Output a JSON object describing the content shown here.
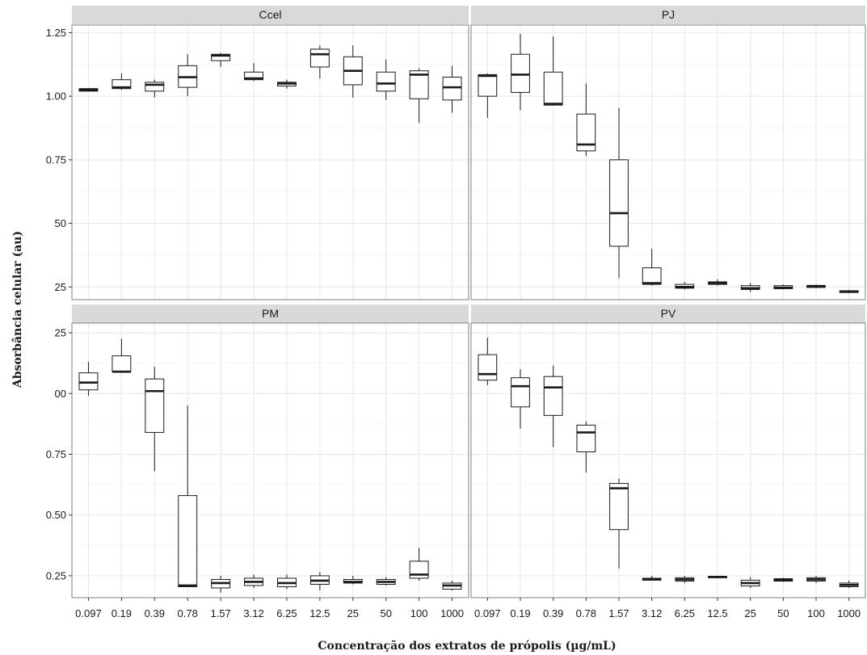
{
  "chart_data": {
    "type": "box",
    "xlabel": "Concentração dos extratos de própolis (µg/mL)",
    "ylabel": "Absorbância celular (au)",
    "categories": [
      "0.097",
      "0.19",
      "0.39",
      "0.78",
      "1.57",
      "3.12",
      "6.25",
      "12.5",
      "25",
      "50",
      "100",
      "1000"
    ],
    "y_tick_labels": {
      "Ccel": [
        "25",
        "50",
        "0.75",
        "1.00",
        "1.25"
      ],
      "PJ": [
        "25",
        "50",
        "0.75",
        "1.00",
        "1.25"
      ],
      "PM": [
        "0.25",
        "0.50",
        "0.75",
        "00",
        "25"
      ],
      "PV": [
        "0.25",
        "0.50",
        "0.75",
        "00",
        "25"
      ]
    },
    "top_row_ylim": [
      0.2,
      1.28
    ],
    "bottom_row_ylim": [
      0.16,
      1.29
    ],
    "panels": [
      {
        "name": "Ccel",
        "boxes": [
          {
            "x": "0.097",
            "min": 1.02,
            "q1": 1.02,
            "median": 1.025,
            "q3": 1.03,
            "max": 1.03
          },
          {
            "x": "0.19",
            "min": 1.025,
            "q1": 1.03,
            "median": 1.035,
            "q3": 1.065,
            "max": 1.09
          },
          {
            "x": "0.39",
            "min": 0.995,
            "q1": 1.02,
            "median": 1.045,
            "q3": 1.055,
            "max": 1.065
          },
          {
            "x": "0.78",
            "min": 1.0,
            "q1": 1.035,
            "median": 1.075,
            "q3": 1.12,
            "max": 1.165
          },
          {
            "x": "1.57",
            "min": 1.115,
            "q1": 1.14,
            "median": 1.16,
            "q3": 1.165,
            "max": 1.17
          },
          {
            "x": "3.12",
            "min": 1.06,
            "q1": 1.065,
            "median": 1.07,
            "q3": 1.095,
            "max": 1.13
          },
          {
            "x": "6.25",
            "min": 1.03,
            "q1": 1.04,
            "median": 1.05,
            "q3": 1.055,
            "max": 1.065
          },
          {
            "x": "12.5",
            "min": 1.07,
            "q1": 1.115,
            "median": 1.165,
            "q3": 1.185,
            "max": 1.2
          },
          {
            "x": "25",
            "min": 0.995,
            "q1": 1.045,
            "median": 1.1,
            "q3": 1.155,
            "max": 1.2
          },
          {
            "x": "50",
            "min": 0.985,
            "q1": 1.02,
            "median": 1.05,
            "q3": 1.095,
            "max": 1.145
          },
          {
            "x": "100",
            "min": 0.895,
            "q1": 0.99,
            "median": 1.085,
            "q3": 1.1,
            "max": 1.11
          },
          {
            "x": "1000",
            "min": 0.935,
            "q1": 0.985,
            "median": 1.035,
            "q3": 1.075,
            "max": 1.12
          }
        ]
      },
      {
        "name": "PJ",
        "boxes": [
          {
            "x": "0.097",
            "min": 0.915,
            "q1": 1.0,
            "median": 1.08,
            "q3": 1.085,
            "max": 1.09
          },
          {
            "x": "0.19",
            "min": 0.945,
            "q1": 1.015,
            "median": 1.085,
            "q3": 1.165,
            "max": 1.245
          },
          {
            "x": "0.39",
            "min": 0.965,
            "q1": 0.965,
            "median": 0.97,
            "q3": 1.095,
            "max": 1.235
          },
          {
            "x": "0.78",
            "min": 0.765,
            "q1": 0.785,
            "median": 0.81,
            "q3": 0.93,
            "max": 1.05
          },
          {
            "x": "1.57",
            "min": 0.285,
            "q1": 0.41,
            "median": 0.54,
            "q3": 0.75,
            "max": 0.955
          },
          {
            "x": "3.12",
            "min": 0.255,
            "q1": 0.26,
            "median": 0.265,
            "q3": 0.325,
            "max": 0.4
          },
          {
            "x": "6.25",
            "min": 0.24,
            "q1": 0.245,
            "median": 0.25,
            "q3": 0.26,
            "max": 0.27
          },
          {
            "x": "12.5",
            "min": 0.255,
            "q1": 0.26,
            "median": 0.265,
            "q3": 0.27,
            "max": 0.28
          },
          {
            "x": "25",
            "min": 0.23,
            "q1": 0.24,
            "median": 0.245,
            "q3": 0.255,
            "max": 0.265
          },
          {
            "x": "50",
            "min": 0.24,
            "q1": 0.243,
            "median": 0.247,
            "q3": 0.255,
            "max": 0.26
          },
          {
            "x": "100",
            "min": 0.245,
            "q1": 0.248,
            "median": 0.252,
            "q3": 0.256,
            "max": 0.26
          },
          {
            "x": "1000",
            "min": 0.225,
            "q1": 0.228,
            "median": 0.232,
            "q3": 0.235,
            "max": 0.238
          }
        ]
      },
      {
        "name": "PM",
        "boxes": [
          {
            "x": "0.097",
            "min": 0.99,
            "q1": 1.015,
            "median": 1.045,
            "q3": 1.085,
            "max": 1.13
          },
          {
            "x": "0.19",
            "min": 1.085,
            "q1": 1.09,
            "median": 1.09,
            "q3": 1.155,
            "max": 1.225
          },
          {
            "x": "0.39",
            "min": 0.68,
            "q1": 0.84,
            "median": 1.01,
            "q3": 1.06,
            "max": 1.11
          },
          {
            "x": "0.78",
            "min": 0.205,
            "q1": 0.205,
            "median": 0.21,
            "q3": 0.58,
            "max": 0.95
          },
          {
            "x": "1.57",
            "min": 0.18,
            "q1": 0.2,
            "median": 0.22,
            "q3": 0.235,
            "max": 0.25
          },
          {
            "x": "3.12",
            "min": 0.2,
            "q1": 0.21,
            "median": 0.225,
            "q3": 0.24,
            "max": 0.255
          },
          {
            "x": "6.25",
            "min": 0.195,
            "q1": 0.205,
            "median": 0.22,
            "q3": 0.24,
            "max": 0.255
          },
          {
            "x": "12.5",
            "min": 0.19,
            "q1": 0.215,
            "median": 0.23,
            "q3": 0.25,
            "max": 0.265
          },
          {
            "x": "25",
            "min": 0.215,
            "q1": 0.22,
            "median": 0.225,
            "q3": 0.235,
            "max": 0.25
          },
          {
            "x": "50",
            "min": 0.21,
            "q1": 0.215,
            "median": 0.225,
            "q3": 0.235,
            "max": 0.245
          },
          {
            "x": "100",
            "min": 0.23,
            "q1": 0.24,
            "median": 0.255,
            "q3": 0.31,
            "max": 0.365
          },
          {
            "x": "1000",
            "min": 0.19,
            "q1": 0.195,
            "median": 0.21,
            "q3": 0.22,
            "max": 0.23
          }
        ]
      },
      {
        "name": "PV",
        "boxes": [
          {
            "x": "0.097",
            "min": 1.035,
            "q1": 1.055,
            "median": 1.08,
            "q3": 1.16,
            "max": 1.23
          },
          {
            "x": "0.19",
            "min": 0.855,
            "q1": 0.945,
            "median": 1.03,
            "q3": 1.065,
            "max": 1.1
          },
          {
            "x": "0.39",
            "min": 0.78,
            "q1": 0.91,
            "median": 1.025,
            "q3": 1.07,
            "max": 1.115
          },
          {
            "x": "0.78",
            "min": 0.675,
            "q1": 0.76,
            "median": 0.84,
            "q3": 0.87,
            "max": 0.885
          },
          {
            "x": "1.57",
            "min": 0.28,
            "q1": 0.44,
            "median": 0.61,
            "q3": 0.63,
            "max": 0.65
          },
          {
            "x": "3.12",
            "min": 0.23,
            "q1": 0.232,
            "median": 0.235,
            "q3": 0.24,
            "max": 0.25
          },
          {
            "x": "6.25",
            "min": 0.22,
            "q1": 0.228,
            "median": 0.235,
            "q3": 0.242,
            "max": 0.25
          },
          {
            "x": "12.5",
            "min": 0.24,
            "q1": 0.242,
            "median": 0.245,
            "q3": 0.248,
            "max": 0.25
          },
          {
            "x": "25",
            "min": 0.2,
            "q1": 0.208,
            "median": 0.22,
            "q3": 0.232,
            "max": 0.245
          },
          {
            "x": "50",
            "min": 0.225,
            "q1": 0.228,
            "median": 0.232,
            "q3": 0.238,
            "max": 0.242
          },
          {
            "x": "100",
            "min": 0.22,
            "q1": 0.228,
            "median": 0.235,
            "q3": 0.242,
            "max": 0.25
          },
          {
            "x": "1000",
            "min": 0.2,
            "q1": 0.205,
            "median": 0.212,
            "q3": 0.22,
            "max": 0.23
          }
        ]
      }
    ],
    "grid": true,
    "legend": "none",
    "colors": {
      "panel_background": "#ffffff",
      "strip_background": "#d9d9d9",
      "grid_major": "#ebebeb",
      "grid_minor": "#f5f5f5",
      "box_stroke": "#1a1a1a"
    }
  }
}
